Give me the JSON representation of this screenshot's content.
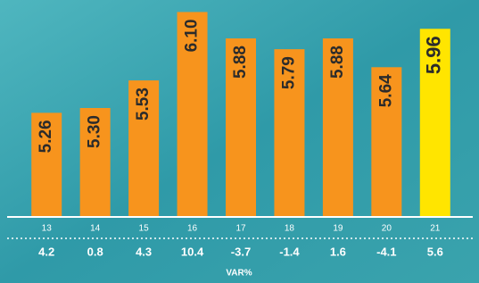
{
  "chart_data": {
    "type": "bar",
    "categories": [
      "13",
      "14",
      "15",
      "16",
      "17",
      "18",
      "19",
      "20",
      "21"
    ],
    "values": [
      5.26,
      5.3,
      5.53,
      6.1,
      5.88,
      5.79,
      5.88,
      5.64,
      5.96
    ],
    "value_labels": [
      "5.26",
      "5.30",
      "5.53",
      "6.10",
      "5.88",
      "5.79",
      "5.88",
      "5.64",
      "5.96"
    ],
    "colors": [
      "#f7941d",
      "#f7941d",
      "#f7941d",
      "#f7941d",
      "#f7941d",
      "#f7941d",
      "#f7941d",
      "#f7941d",
      "#ffe500"
    ],
    "ylim": [
      4.4,
      6.2
    ],
    "var_label": "VAR%",
    "var_values": [
      4.2,
      0.8,
      4.3,
      10.4,
      -3.7,
      -1.4,
      1.6,
      -4.1,
      5.6
    ]
  }
}
